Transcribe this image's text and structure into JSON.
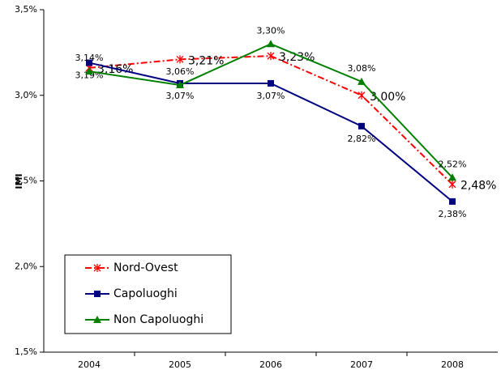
{
  "chart_data": {
    "type": "line",
    "y_label": "IMI",
    "categories": [
      "2004",
      "2005",
      "2006",
      "2007",
      "2008"
    ],
    "ylim": [
      1.5,
      3.5
    ],
    "yticks": [
      {
        "value": 1.5,
        "label": "1,5%"
      },
      {
        "value": 2.0,
        "label": "2,0%"
      },
      {
        "value": 2.5,
        "label": "2,5%"
      },
      {
        "value": 3.0,
        "label": "3,0%"
      },
      {
        "value": 3.5,
        "label": "3,5%"
      }
    ],
    "legend": "lower left",
    "series": [
      {
        "name": "Nord-Ovest",
        "color": "#ff0000",
        "marker": "star",
        "dash": "dashdot",
        "values": [
          3.16,
          3.21,
          3.23,
          3.0,
          2.48
        ],
        "value_labels": [
          "3,16%",
          "3,21%",
          "3,23%",
          "3,00%",
          "2,48%"
        ]
      },
      {
        "name": "Capoluoghi",
        "color": "#000080",
        "marker": "square",
        "dash": "solid",
        "values": [
          3.19,
          3.07,
          3.07,
          2.82,
          2.38
        ],
        "value_labels": [
          "3,19%",
          "3,07%",
          "3,07%",
          "2,82%",
          "2,38%"
        ]
      },
      {
        "name": "Non Capoluoghi",
        "color": "#008000",
        "marker": "triangle",
        "dash": "solid",
        "values": [
          3.14,
          3.06,
          3.3,
          3.08,
          2.52
        ],
        "value_labels": [
          "3,14%",
          "3,06%",
          "3,30%",
          "3,08%",
          "2,52%"
        ]
      }
    ]
  }
}
